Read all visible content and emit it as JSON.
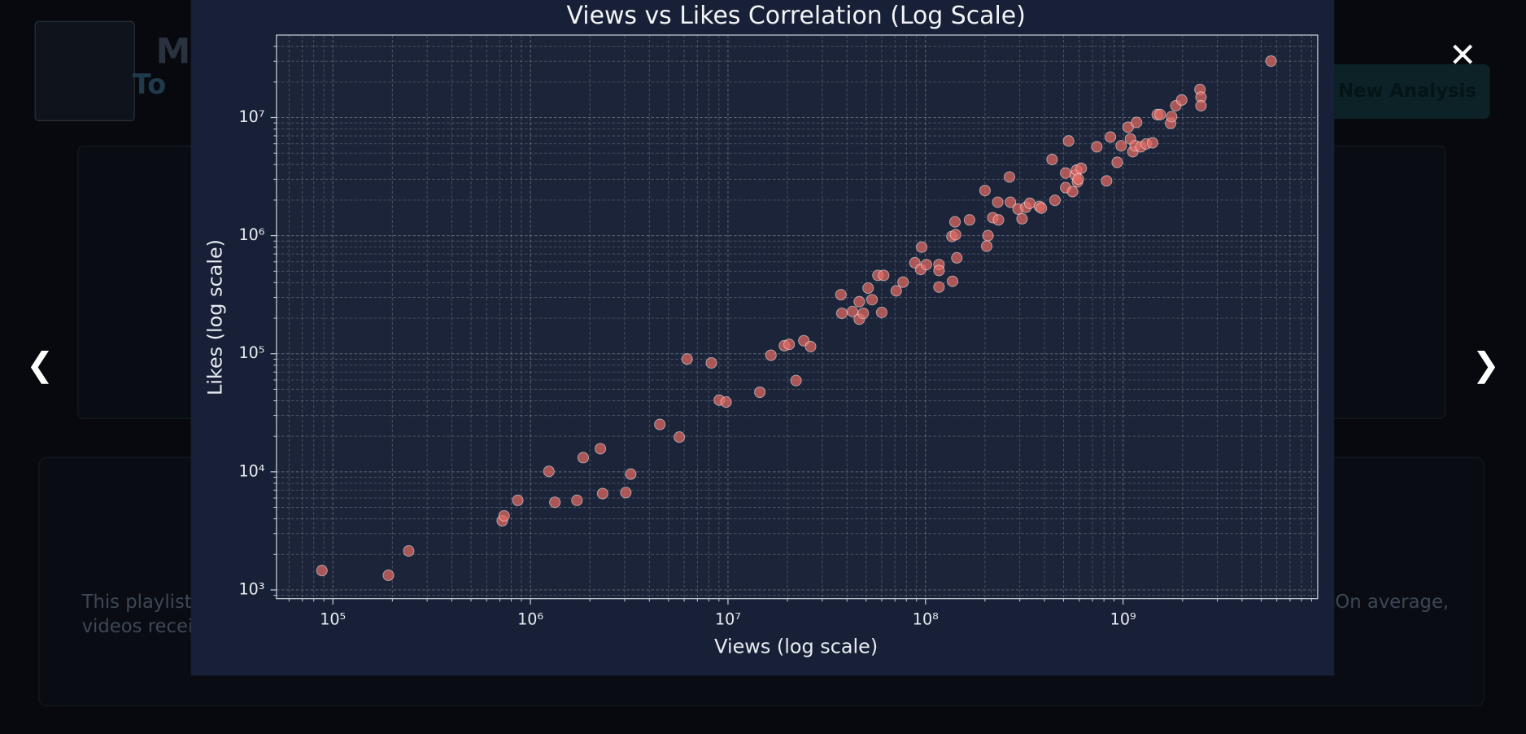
{
  "chart_data": {
    "type": "scatter",
    "title": "Views vs Likes Correlation (Log Scale)",
    "xlabel": "Views (log scale)",
    "ylabel": "Likes (log scale)",
    "xscale": "log",
    "yscale": "log",
    "grid": true,
    "color": "#e36a62",
    "xlim": [
      51800,
      9660000000
    ],
    "ylim": [
      843,
      50000000
    ],
    "xticks": [
      {
        "value": 100000,
        "label": "10⁵"
      },
      {
        "value": 1000000,
        "label": "10⁶"
      },
      {
        "value": 10000000,
        "label": "10⁷"
      },
      {
        "value": 100000000,
        "label": "10⁸"
      },
      {
        "value": 1000000000,
        "label": "10⁹"
      }
    ],
    "yticks": [
      {
        "value": 1000,
        "label": "10³"
      },
      {
        "value": 10000,
        "label": "10⁴"
      },
      {
        "value": 100000,
        "label": "10⁵"
      },
      {
        "value": 1000000,
        "label": "10⁶"
      },
      {
        "value": 10000000,
        "label": "10⁷"
      }
    ],
    "x": [
      88000,
      191000,
      242000,
      720000,
      736000,
      863000,
      1240000,
      1330000,
      1720000,
      1850000,
      2260000,
      2320000,
      3040000,
      3220000,
      4520000,
      5670000,
      6210000,
      8240000,
      9030000,
      9780000,
      14500000,
      16500000,
      19300000,
      20400000,
      22100000,
      24200000,
      26200000,
      37300000,
      37700000,
      42700000,
      46200000,
      46200000,
      48400000,
      51200000,
      53600000,
      57400000,
      60000000,
      61400000,
      71100000,
      77000000,
      88300000,
      94500000,
      95600000,
      101000000,
      117000000,
      117000000,
      117000000,
      137000000,
      136000000,
      142000000,
      141000000,
      144000000,
      167000000,
      200000000,
      207000000,
      204000000,
      219000000,
      232000000,
      234000000,
      266000000,
      269000000,
      294000000,
      308000000,
      322000000,
      337000000,
      377000000,
      386000000,
      437000000,
      452000000,
      512000000,
      512000000,
      530000000,
      555000000,
      574000000,
      581000000,
      587000000,
      593000000,
      614000000,
      736000000,
      825000000,
      863000000,
      934000000,
      978000000,
      1060000000,
      1090000000,
      1120000000,
      1150000000,
      1170000000,
      1230000000,
      1310000000,
      1410000000,
      1490000000,
      1540000000,
      1740000000,
      1760000000,
      1850000000,
      1980000000,
      2450000000,
      2480000000,
      2480000000,
      5610000000
    ],
    "values": [
      1460,
      1330,
      2140,
      3850,
      4240,
      5740,
      10100,
      5520,
      5740,
      13200,
      15700,
      6550,
      6680,
      9570,
      25200,
      19700,
      90200,
      83600,
      40500,
      39000,
      47200,
      97200,
      117000,
      120000,
      59300,
      129000,
      115000,
      316000,
      220000,
      228000,
      276000,
      196000,
      220000,
      360000,
      287000,
      461000,
      224000,
      461000,
      341000,
      404000,
      590000,
      517000,
      800000,
      569000,
      569000,
      507000,
      367000,
      411000,
      986000,
      1020000,
      1310000,
      649000,
      1360000,
      2410000,
      1000000,
      815000,
      1420000,
      1920000,
      1360000,
      3140000,
      1920000,
      1680000,
      1390000,
      1740000,
      1880000,
      1770000,
      1710000,
      4420000,
      1990000,
      3390000,
      2550000,
      6340000,
      2360000,
      3260000,
      3590000,
      2860000,
      3020000,
      3720000,
      5660000,
      2910000,
      6840000,
      4180000,
      5770000,
      8280000,
      6590000,
      5140000,
      5770000,
      9100000,
      5660000,
      5980000,
      6110000,
      10600000,
      10600000,
      8940000,
      10200000,
      12600000,
      14100000,
      17300000,
      14900000,
      12600000,
      30100000
    ]
  },
  "background": {
    "header_title": "M",
    "header_subtitle": "To",
    "button": "New Analysis",
    "summary_left_1": "This playlist",
    "summary_left_2": "videos recei",
    "summary_right": "On average,"
  },
  "controls": {
    "close": "✕",
    "prev": "❮",
    "next": "❯"
  }
}
